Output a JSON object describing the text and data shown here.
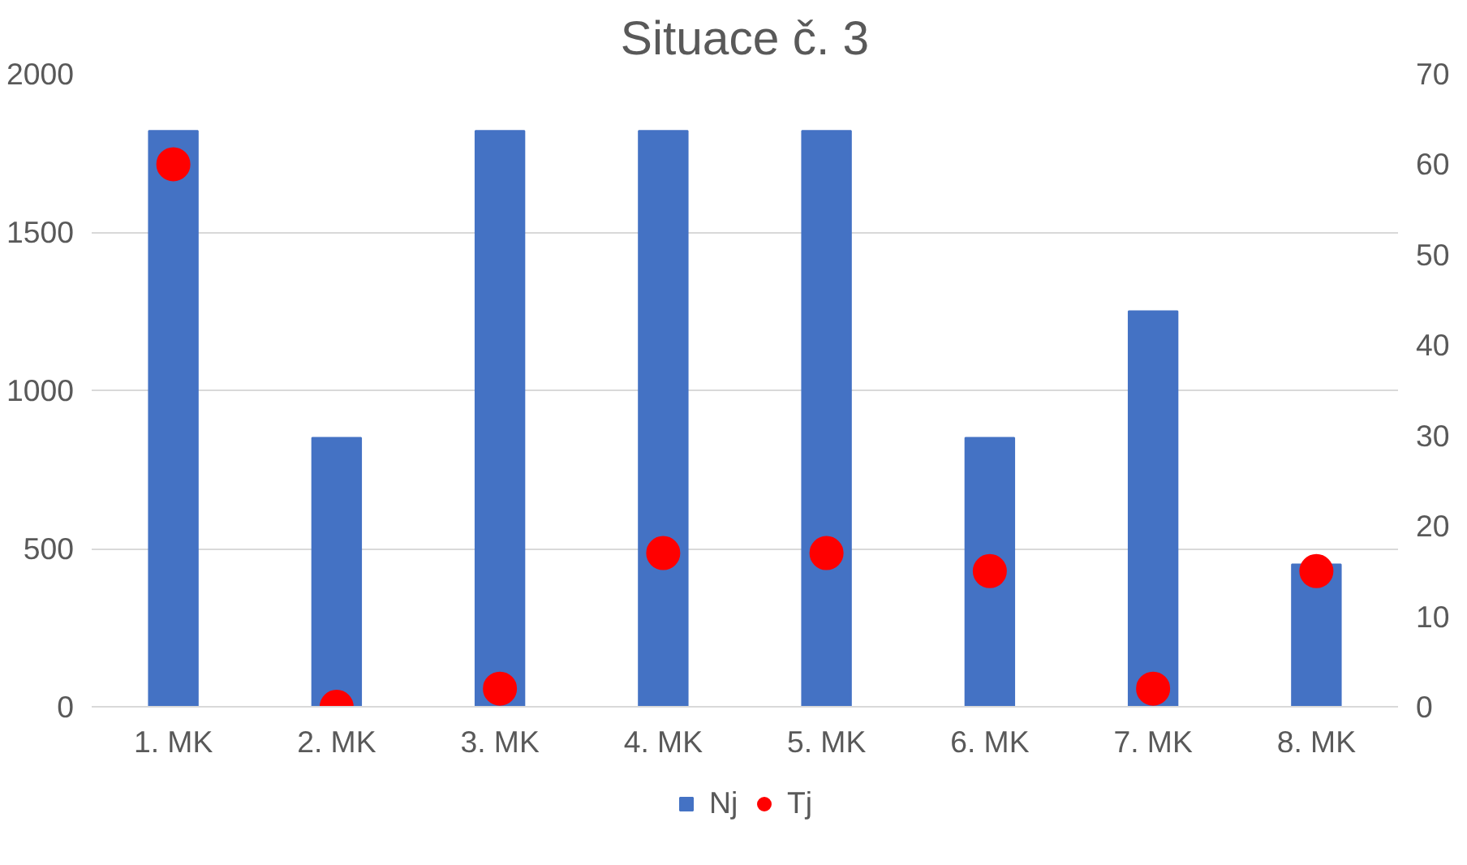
{
  "chart_data": {
    "type": "bar",
    "title": "Situace č. 3",
    "categories": [
      "1. MK",
      "2. MK",
      "3. MK",
      "4. MK",
      "5. MK",
      "6. MK",
      "7. MK",
      "8. MK"
    ],
    "series": [
      {
        "name": "Nj",
        "color": "#4472c4",
        "values": [
          1820,
          850,
          1820,
          1820,
          1820,
          850,
          1250,
          450
        ]
      },
      {
        "name": "Tj",
        "color": "#ff0000",
        "type": "scatter",
        "axis": "y2",
        "marker": "circle",
        "values": [
          60,
          0,
          2,
          17,
          17,
          15,
          2,
          15
        ]
      }
    ],
    "ylim": [
      0,
      2000
    ],
    "yticks": [
      0,
      500,
      1000,
      1500,
      2000
    ],
    "y2lim": [
      0,
      70
    ],
    "y2ticks": [
      0,
      10,
      20,
      30,
      40,
      50,
      60,
      70
    ],
    "grid": "y",
    "legend": "bottom"
  }
}
